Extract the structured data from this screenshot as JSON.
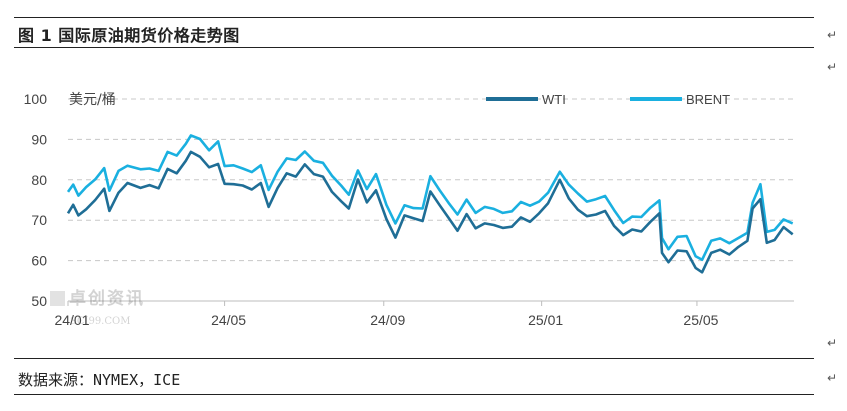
{
  "document": {
    "title": "图 1 国际原油期货价格走势图",
    "source": "数据来源：NYMEX，ICE",
    "para_mark": "↵"
  },
  "watermark": {
    "name": "卓创资讯",
    "url": "SCI99.COM"
  },
  "chart_data": {
    "type": "line",
    "ylabel": "美元/桶",
    "ylim": [
      50,
      100
    ],
    "yticks": [
      50,
      60,
      70,
      80,
      90,
      100
    ],
    "grid": true,
    "legend_position": "top-right",
    "x_range": [
      "2024-01-01",
      "2025-07-15"
    ],
    "xticks": [
      {
        "date": "2024-01-01",
        "label": "24/01"
      },
      {
        "date": "2024-05-01",
        "label": "24/05"
      },
      {
        "date": "2024-09-01",
        "label": "24/09"
      },
      {
        "date": "2025-01-01",
        "label": "25/01"
      },
      {
        "date": "2025-05-01",
        "label": "25/05"
      }
    ],
    "series": [
      {
        "name": "WTI",
        "color": "#1f6e96",
        "points": [
          [
            "2024-01-01",
            71.7
          ],
          [
            "2024-01-05",
            73.8
          ],
          [
            "2024-01-09",
            71.2
          ],
          [
            "2024-01-15",
            72.7
          ],
          [
            "2024-01-22",
            75.0
          ],
          [
            "2024-01-29",
            77.8
          ],
          [
            "2024-02-02",
            72.3
          ],
          [
            "2024-02-09",
            76.8
          ],
          [
            "2024-02-16",
            79.2
          ],
          [
            "2024-02-26",
            78.0
          ],
          [
            "2024-03-04",
            78.7
          ],
          [
            "2024-03-11",
            77.9
          ],
          [
            "2024-03-18",
            82.7
          ],
          [
            "2024-03-25",
            81.6
          ],
          [
            "2024-04-01",
            84.7
          ],
          [
            "2024-04-05",
            86.9
          ],
          [
            "2024-04-12",
            85.7
          ],
          [
            "2024-04-19",
            83.1
          ],
          [
            "2024-04-26",
            83.9
          ],
          [
            "2024-05-01",
            79.0
          ],
          [
            "2024-05-08",
            78.9
          ],
          [
            "2024-05-15",
            78.6
          ],
          [
            "2024-05-22",
            77.6
          ],
          [
            "2024-05-29",
            79.2
          ],
          [
            "2024-06-04",
            73.3
          ],
          [
            "2024-06-11",
            78.0
          ],
          [
            "2024-06-18",
            81.6
          ],
          [
            "2024-06-25",
            80.8
          ],
          [
            "2024-07-02",
            83.8
          ],
          [
            "2024-07-09",
            81.4
          ],
          [
            "2024-07-16",
            80.8
          ],
          [
            "2024-07-23",
            77.0
          ],
          [
            "2024-07-30",
            74.7
          ],
          [
            "2024-08-05",
            72.9
          ],
          [
            "2024-08-12",
            80.1
          ],
          [
            "2024-08-19",
            74.4
          ],
          [
            "2024-08-26",
            77.4
          ],
          [
            "2024-09-03",
            70.3
          ],
          [
            "2024-09-10",
            65.7
          ],
          [
            "2024-09-17",
            71.2
          ],
          [
            "2024-09-24",
            70.5
          ],
          [
            "2024-10-01",
            69.8
          ],
          [
            "2024-10-07",
            77.1
          ],
          [
            "2024-10-14",
            73.8
          ],
          [
            "2024-10-21",
            70.6
          ],
          [
            "2024-10-28",
            67.4
          ],
          [
            "2024-11-04",
            71.5
          ],
          [
            "2024-11-11",
            68.0
          ],
          [
            "2024-11-18",
            69.2
          ],
          [
            "2024-11-25",
            68.8
          ],
          [
            "2024-12-02",
            68.1
          ],
          [
            "2024-12-09",
            68.4
          ],
          [
            "2024-12-16",
            70.7
          ],
          [
            "2024-12-23",
            69.6
          ],
          [
            "2024-12-30",
            71.7
          ],
          [
            "2025-01-06",
            74.2
          ],
          [
            "2025-01-15",
            80.0
          ],
          [
            "2025-01-22",
            75.4
          ],
          [
            "2025-01-29",
            72.6
          ],
          [
            "2025-02-05",
            71.0
          ],
          [
            "2025-02-12",
            71.4
          ],
          [
            "2025-02-19",
            72.3
          ],
          [
            "2025-02-26",
            68.6
          ],
          [
            "2025-03-05",
            66.3
          ],
          [
            "2025-03-12",
            67.7
          ],
          [
            "2025-03-19",
            67.2
          ],
          [
            "2025-03-26",
            69.6
          ],
          [
            "2025-04-02",
            71.7
          ],
          [
            "2025-04-04",
            61.9
          ],
          [
            "2025-04-09",
            59.6
          ],
          [
            "2025-04-16",
            62.5
          ],
          [
            "2025-04-23",
            62.3
          ],
          [
            "2025-04-30",
            58.2
          ],
          [
            "2025-05-05",
            57.1
          ],
          [
            "2025-05-12",
            61.9
          ],
          [
            "2025-05-19",
            62.7
          ],
          [
            "2025-05-26",
            61.5
          ],
          [
            "2025-06-02",
            63.4
          ],
          [
            "2025-06-09",
            64.9
          ],
          [
            "2025-06-13",
            72.9
          ],
          [
            "2025-06-19",
            75.2
          ],
          [
            "2025-06-24",
            64.4
          ],
          [
            "2025-06-30",
            65.1
          ],
          [
            "2025-07-07",
            68.3
          ],
          [
            "2025-07-14",
            66.5
          ]
        ]
      },
      {
        "name": "BRENT",
        "color": "#1ab0e0",
        "points": [
          [
            "2024-01-01",
            77.0
          ],
          [
            "2024-01-05",
            78.8
          ],
          [
            "2024-01-09",
            76.1
          ],
          [
            "2024-01-15",
            78.2
          ],
          [
            "2024-01-22",
            80.1
          ],
          [
            "2024-01-29",
            82.9
          ],
          [
            "2024-02-02",
            77.3
          ],
          [
            "2024-02-09",
            82.2
          ],
          [
            "2024-02-16",
            83.5
          ],
          [
            "2024-02-26",
            82.6
          ],
          [
            "2024-03-04",
            82.8
          ],
          [
            "2024-03-11",
            82.2
          ],
          [
            "2024-03-18",
            86.9
          ],
          [
            "2024-03-25",
            86.0
          ],
          [
            "2024-04-01",
            88.9
          ],
          [
            "2024-04-05",
            91.0
          ],
          [
            "2024-04-12",
            90.1
          ],
          [
            "2024-04-19",
            87.3
          ],
          [
            "2024-04-26",
            89.5
          ],
          [
            "2024-05-01",
            83.4
          ],
          [
            "2024-05-08",
            83.6
          ],
          [
            "2024-05-15",
            82.8
          ],
          [
            "2024-05-22",
            81.9
          ],
          [
            "2024-05-29",
            83.6
          ],
          [
            "2024-06-04",
            77.5
          ],
          [
            "2024-06-11",
            82.0
          ],
          [
            "2024-06-18",
            85.3
          ],
          [
            "2024-06-25",
            84.9
          ],
          [
            "2024-07-02",
            87.0
          ],
          [
            "2024-07-09",
            84.7
          ],
          [
            "2024-07-16",
            84.2
          ],
          [
            "2024-07-23",
            81.0
          ],
          [
            "2024-07-30",
            78.6
          ],
          [
            "2024-08-05",
            76.3
          ],
          [
            "2024-08-12",
            82.3
          ],
          [
            "2024-08-19",
            77.7
          ],
          [
            "2024-08-26",
            81.4
          ],
          [
            "2024-09-03",
            73.8
          ],
          [
            "2024-09-10",
            69.2
          ],
          [
            "2024-09-17",
            73.7
          ],
          [
            "2024-09-24",
            73.0
          ],
          [
            "2024-10-01",
            72.9
          ],
          [
            "2024-10-07",
            80.9
          ],
          [
            "2024-10-14",
            77.5
          ],
          [
            "2024-10-21",
            74.3
          ],
          [
            "2024-10-28",
            71.4
          ],
          [
            "2024-11-04",
            75.1
          ],
          [
            "2024-11-11",
            71.8
          ],
          [
            "2024-11-18",
            73.3
          ],
          [
            "2024-11-25",
            72.8
          ],
          [
            "2024-12-02",
            71.8
          ],
          [
            "2024-12-09",
            72.2
          ],
          [
            "2024-12-16",
            74.5
          ],
          [
            "2024-12-23",
            73.6
          ],
          [
            "2024-12-30",
            74.6
          ],
          [
            "2025-01-06",
            76.8
          ],
          [
            "2025-01-15",
            82.0
          ],
          [
            "2025-01-22",
            78.8
          ],
          [
            "2025-01-29",
            76.6
          ],
          [
            "2025-02-05",
            74.6
          ],
          [
            "2025-02-12",
            75.2
          ],
          [
            "2025-02-19",
            76.0
          ],
          [
            "2025-02-26",
            72.5
          ],
          [
            "2025-03-05",
            69.3
          ],
          [
            "2025-03-12",
            70.9
          ],
          [
            "2025-03-19",
            70.8
          ],
          [
            "2025-03-26",
            73.1
          ],
          [
            "2025-04-02",
            74.9
          ],
          [
            "2025-04-04",
            65.6
          ],
          [
            "2025-04-09",
            62.8
          ],
          [
            "2025-04-16",
            65.9
          ],
          [
            "2025-04-23",
            66.1
          ],
          [
            "2025-04-30",
            61.1
          ],
          [
            "2025-05-05",
            60.2
          ],
          [
            "2025-05-12",
            64.9
          ],
          [
            "2025-05-19",
            65.5
          ],
          [
            "2025-05-26",
            64.3
          ],
          [
            "2025-06-02",
            65.6
          ],
          [
            "2025-06-09",
            66.9
          ],
          [
            "2025-06-13",
            74.3
          ],
          [
            "2025-06-19",
            78.9
          ],
          [
            "2025-06-24",
            67.1
          ],
          [
            "2025-06-30",
            67.6
          ],
          [
            "2025-07-07",
            70.2
          ],
          [
            "2025-07-14",
            69.2
          ]
        ]
      }
    ]
  }
}
